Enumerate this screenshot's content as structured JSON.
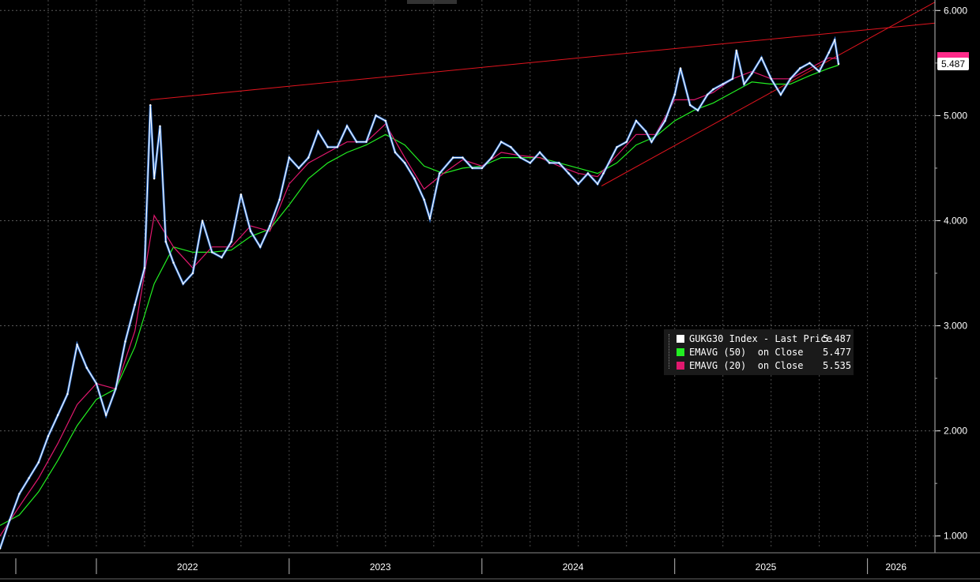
{
  "chart_data": {
    "type": "line",
    "ticker": "GUKG30 Index",
    "x_axis_labels": [
      "2022",
      "2023",
      "2024",
      "2025",
      "2026"
    ],
    "x_range": [
      2021.5,
      2026.35
    ],
    "y_ticks": [
      "1.000",
      "2.000",
      "3.000",
      "4.000",
      "5.000",
      "6.000"
    ],
    "ylim": [
      0.9,
      6.1
    ],
    "last_value_label": "5.487",
    "series": [
      {
        "name": "GUKG30 Index - Last Price",
        "color": "#ffffff",
        "points": [
          [
            2021.5,
            0.88
          ],
          [
            2021.55,
            1.15
          ],
          [
            2021.6,
            1.4
          ],
          [
            2021.65,
            1.55
          ],
          [
            2021.7,
            1.7
          ],
          [
            2021.75,
            1.95
          ],
          [
            2021.8,
            2.15
          ],
          [
            2021.85,
            2.35
          ],
          [
            2021.9,
            2.82
          ],
          [
            2021.95,
            2.6
          ],
          [
            2022.0,
            2.45
          ],
          [
            2022.05,
            2.15
          ],
          [
            2022.1,
            2.4
          ],
          [
            2022.15,
            2.85
          ],
          [
            2022.2,
            3.2
          ],
          [
            2022.25,
            3.55
          ],
          [
            2022.28,
            5.1
          ],
          [
            2022.3,
            4.4
          ],
          [
            2022.33,
            4.9
          ],
          [
            2022.36,
            3.8
          ],
          [
            2022.4,
            3.6
          ],
          [
            2022.45,
            3.4
          ],
          [
            2022.5,
            3.5
          ],
          [
            2022.55,
            4.0
          ],
          [
            2022.6,
            3.7
          ],
          [
            2022.65,
            3.65
          ],
          [
            2022.7,
            3.8
          ],
          [
            2022.75,
            4.25
          ],
          [
            2022.8,
            3.9
          ],
          [
            2022.85,
            3.75
          ],
          [
            2022.9,
            3.95
          ],
          [
            2022.95,
            4.2
          ],
          [
            2023.0,
            4.6
          ],
          [
            2023.05,
            4.5
          ],
          [
            2023.1,
            4.6
          ],
          [
            2023.15,
            4.85
          ],
          [
            2023.2,
            4.7
          ],
          [
            2023.25,
            4.7
          ],
          [
            2023.3,
            4.9
          ],
          [
            2023.35,
            4.75
          ],
          [
            2023.4,
            4.75
          ],
          [
            2023.45,
            5.0
          ],
          [
            2023.5,
            4.95
          ],
          [
            2023.55,
            4.65
          ],
          [
            2023.6,
            4.55
          ],
          [
            2023.65,
            4.4
          ],
          [
            2023.7,
            4.2
          ],
          [
            2023.73,
            4.02
          ],
          [
            2023.78,
            4.45
          ],
          [
            2023.85,
            4.6
          ],
          [
            2023.9,
            4.6
          ],
          [
            2023.95,
            4.5
          ],
          [
            2024.0,
            4.5
          ],
          [
            2024.05,
            4.6
          ],
          [
            2024.1,
            4.75
          ],
          [
            2024.15,
            4.7
          ],
          [
            2024.2,
            4.6
          ],
          [
            2024.25,
            4.55
          ],
          [
            2024.3,
            4.65
          ],
          [
            2024.35,
            4.55
          ],
          [
            2024.4,
            4.55
          ],
          [
            2024.45,
            4.45
          ],
          [
            2024.5,
            4.35
          ],
          [
            2024.55,
            4.45
          ],
          [
            2024.6,
            4.35
          ],
          [
            2024.63,
            4.45
          ],
          [
            2024.7,
            4.7
          ],
          [
            2024.75,
            4.75
          ],
          [
            2024.8,
            4.95
          ],
          [
            2024.85,
            4.85
          ],
          [
            2024.88,
            4.75
          ],
          [
            2024.95,
            4.95
          ],
          [
            2025.0,
            5.2
          ],
          [
            2025.03,
            5.45
          ],
          [
            2025.08,
            5.1
          ],
          [
            2025.12,
            5.05
          ],
          [
            2025.17,
            5.2
          ],
          [
            2025.2,
            5.25
          ],
          [
            2025.25,
            5.3
          ],
          [
            2025.3,
            5.35
          ],
          [
            2025.32,
            5.62
          ],
          [
            2025.36,
            5.3
          ],
          [
            2025.4,
            5.4
          ],
          [
            2025.45,
            5.55
          ],
          [
            2025.5,
            5.35
          ],
          [
            2025.55,
            5.2
          ],
          [
            2025.6,
            5.35
          ],
          [
            2025.65,
            5.45
          ],
          [
            2025.7,
            5.5
          ],
          [
            2025.75,
            5.42
          ],
          [
            2025.8,
            5.6
          ],
          [
            2025.83,
            5.72
          ],
          [
            2025.85,
            5.49
          ]
        ]
      },
      {
        "name": "EMAVG (50) on Close",
        "color": "#22ee22",
        "value": "5.477",
        "points": [
          [
            2021.5,
            1.1
          ],
          [
            2021.6,
            1.2
          ],
          [
            2021.7,
            1.42
          ],
          [
            2021.8,
            1.72
          ],
          [
            2021.9,
            2.05
          ],
          [
            2022.0,
            2.3
          ],
          [
            2022.1,
            2.4
          ],
          [
            2022.2,
            2.8
          ],
          [
            2022.3,
            3.4
          ],
          [
            2022.4,
            3.75
          ],
          [
            2022.5,
            3.7
          ],
          [
            2022.6,
            3.7
          ],
          [
            2022.7,
            3.72
          ],
          [
            2022.8,
            3.85
          ],
          [
            2022.9,
            3.92
          ],
          [
            2023.0,
            4.15
          ],
          [
            2023.1,
            4.4
          ],
          [
            2023.2,
            4.55
          ],
          [
            2023.3,
            4.65
          ],
          [
            2023.4,
            4.72
          ],
          [
            2023.5,
            4.82
          ],
          [
            2023.6,
            4.72
          ],
          [
            2023.7,
            4.52
          ],
          [
            2023.8,
            4.45
          ],
          [
            2023.9,
            4.5
          ],
          [
            2024.0,
            4.52
          ],
          [
            2024.1,
            4.6
          ],
          [
            2024.2,
            4.6
          ],
          [
            2024.3,
            4.6
          ],
          [
            2024.4,
            4.55
          ],
          [
            2024.5,
            4.5
          ],
          [
            2024.6,
            4.45
          ],
          [
            2024.7,
            4.55
          ],
          [
            2024.8,
            4.72
          ],
          [
            2024.9,
            4.8
          ],
          [
            2025.0,
            4.95
          ],
          [
            2025.1,
            5.05
          ],
          [
            2025.2,
            5.12
          ],
          [
            2025.3,
            5.22
          ],
          [
            2025.4,
            5.32
          ],
          [
            2025.5,
            5.3
          ],
          [
            2025.6,
            5.3
          ],
          [
            2025.7,
            5.38
          ],
          [
            2025.8,
            5.45
          ],
          [
            2025.85,
            5.48
          ]
        ]
      },
      {
        "name": "EMAVG (20) on Close",
        "color": "#e0186e",
        "value": "5.535",
        "points": [
          [
            2021.5,
            1.0
          ],
          [
            2021.6,
            1.28
          ],
          [
            2021.7,
            1.55
          ],
          [
            2021.8,
            1.88
          ],
          [
            2021.9,
            2.25
          ],
          [
            2022.0,
            2.45
          ],
          [
            2022.1,
            2.4
          ],
          [
            2022.2,
            2.95
          ],
          [
            2022.3,
            4.05
          ],
          [
            2022.4,
            3.75
          ],
          [
            2022.5,
            3.55
          ],
          [
            2022.6,
            3.75
          ],
          [
            2022.7,
            3.75
          ],
          [
            2022.8,
            3.95
          ],
          [
            2022.9,
            3.9
          ],
          [
            2023.0,
            4.35
          ],
          [
            2023.1,
            4.55
          ],
          [
            2023.2,
            4.65
          ],
          [
            2023.3,
            4.75
          ],
          [
            2023.4,
            4.75
          ],
          [
            2023.5,
            4.92
          ],
          [
            2023.6,
            4.6
          ],
          [
            2023.7,
            4.3
          ],
          [
            2023.8,
            4.45
          ],
          [
            2023.9,
            4.58
          ],
          [
            2024.0,
            4.52
          ],
          [
            2024.1,
            4.65
          ],
          [
            2024.2,
            4.62
          ],
          [
            2024.3,
            4.6
          ],
          [
            2024.4,
            4.52
          ],
          [
            2024.5,
            4.45
          ],
          [
            2024.6,
            4.42
          ],
          [
            2024.7,
            4.62
          ],
          [
            2024.8,
            4.82
          ],
          [
            2024.9,
            4.82
          ],
          [
            2025.0,
            5.15
          ],
          [
            2025.1,
            5.15
          ],
          [
            2025.2,
            5.22
          ],
          [
            2025.3,
            5.35
          ],
          [
            2025.4,
            5.42
          ],
          [
            2025.5,
            5.35
          ],
          [
            2025.6,
            5.35
          ],
          [
            2025.7,
            5.45
          ],
          [
            2025.8,
            5.55
          ],
          [
            2025.85,
            5.54
          ]
        ]
      }
    ],
    "trendlines": [
      {
        "color": "#e0141e",
        "from": [
          2022.28,
          5.15
        ],
        "to": [
          2026.35,
          5.88
        ]
      },
      {
        "color": "#e0141e",
        "from": [
          2024.62,
          4.33
        ],
        "to": [
          2026.35,
          6.08
        ]
      }
    ],
    "grid": true,
    "legend_position": "center-right"
  },
  "legend": {
    "rows": [
      {
        "name": "GUKG30 Index - Last Price",
        "value": "5.487",
        "color": "#ffffff"
      },
      {
        "name": "EMAVG (50)  on Close",
        "value": "5.477",
        "color": "#22ee22"
      },
      {
        "name": "EMAVG (20)  on Close",
        "value": "5.535",
        "color": "#e0186e"
      }
    ]
  }
}
